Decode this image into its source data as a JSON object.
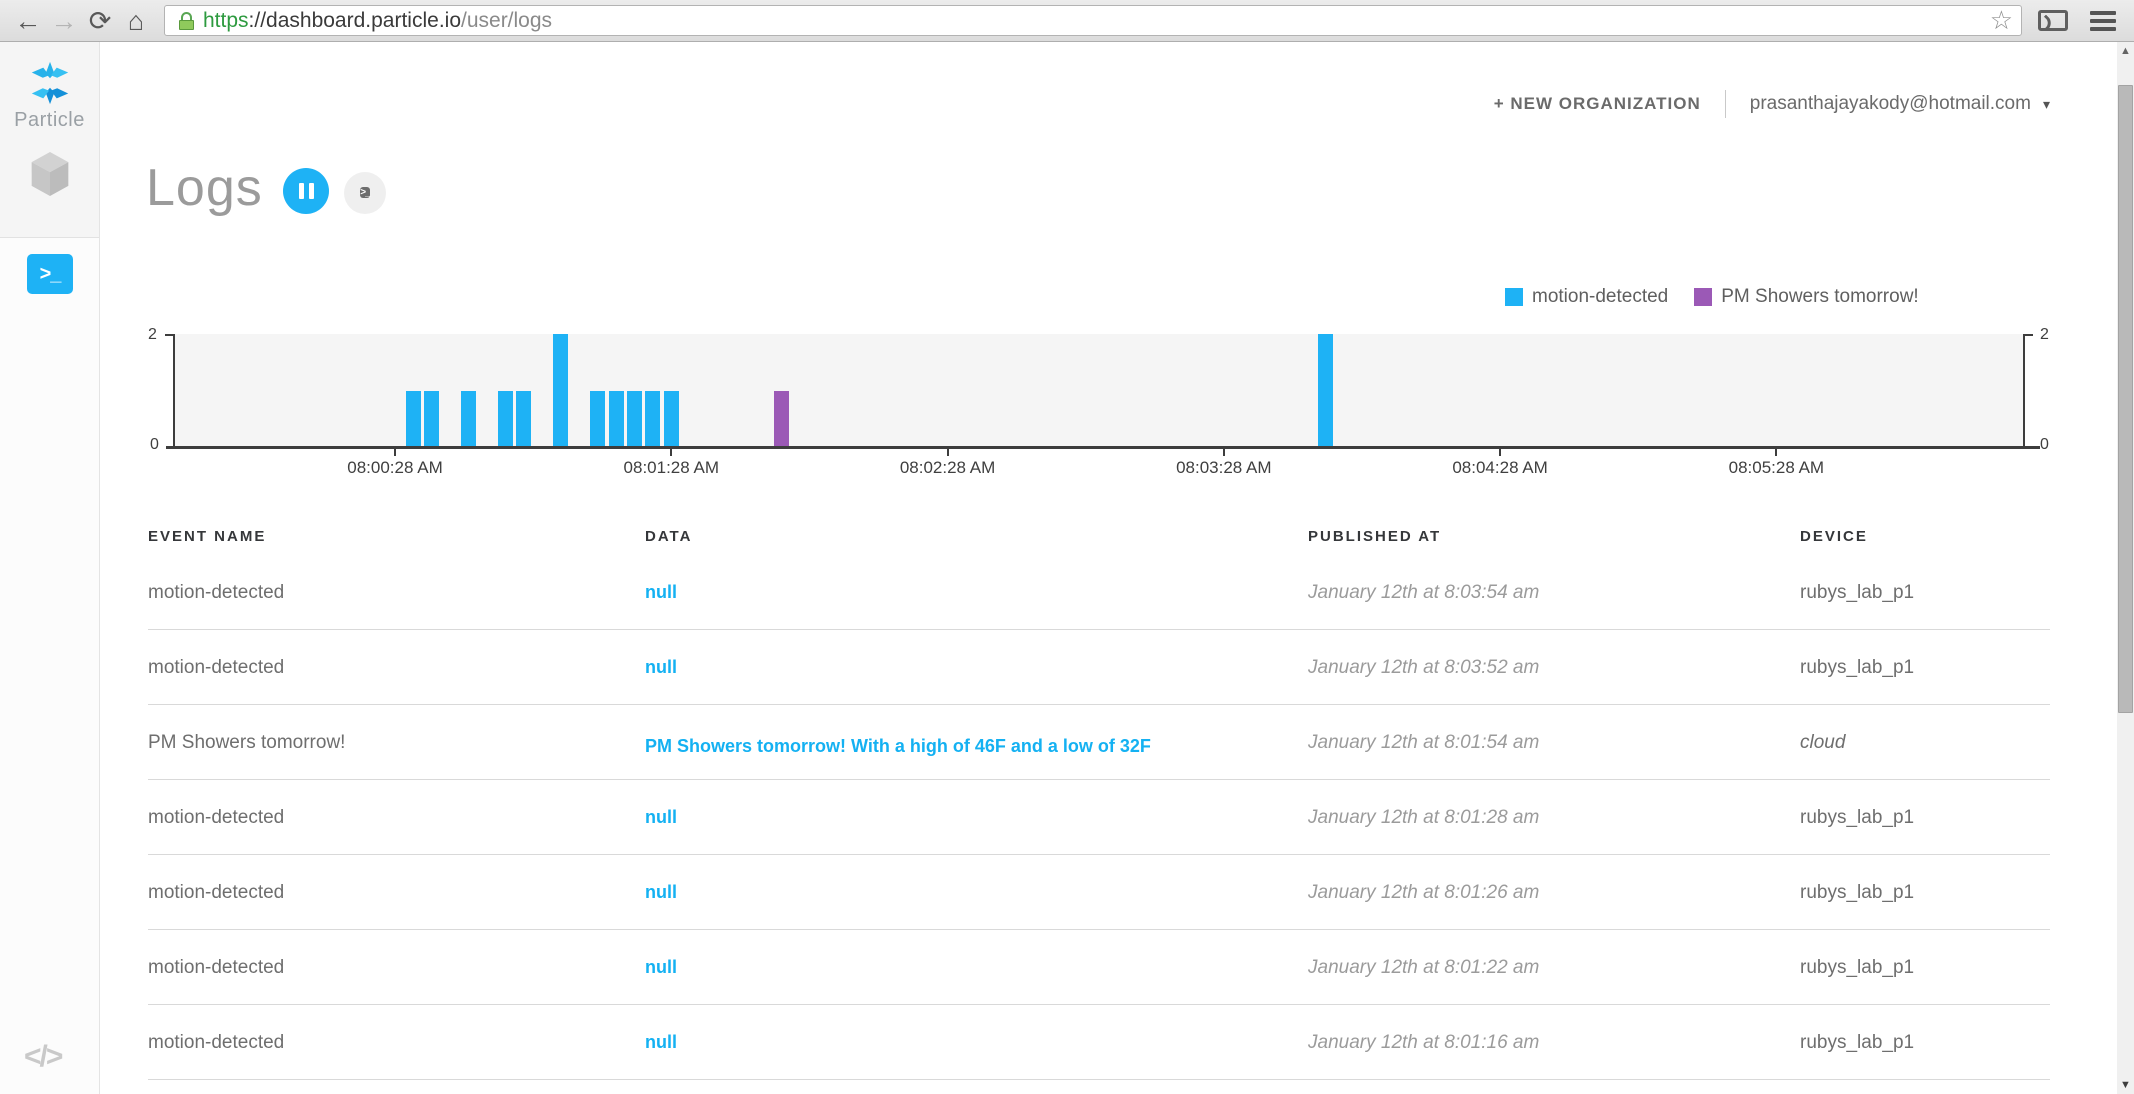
{
  "colors": {
    "accent_blue": "#1eb2f5",
    "accent_purple": "#9b59b6",
    "chart_background": "#f5f5f5"
  },
  "browser": {
    "url_scheme": "https",
    "url_host": "://dashboard.particle.io",
    "url_path": "/user/logs"
  },
  "sidebar": {
    "brand": "Particle"
  },
  "header": {
    "new_org_label": "+ NEW ORGANIZATION",
    "account_email": "prasanthajayakody@hotmail.com",
    "caret": "▾"
  },
  "page": {
    "title": "Logs",
    "terminal_glyph": ">_"
  },
  "chart_data": {
    "type": "bar",
    "title": "",
    "xlabel": "",
    "ylabel": "",
    "x_axis": {
      "start": "07:59:40",
      "end": "08:06:22",
      "ticks": [
        {
          "label": "08:00:28 AM",
          "time": "08:00:28"
        },
        {
          "label": "08:01:28 AM",
          "time": "08:01:28"
        },
        {
          "label": "08:02:28 AM",
          "time": "08:02:28"
        },
        {
          "label": "08:03:28 AM",
          "time": "08:03:28"
        },
        {
          "label": "08:04:28 AM",
          "time": "08:04:28"
        },
        {
          "label": "08:05:28 AM",
          "time": "08:05:28"
        }
      ]
    },
    "y_axis": {
      "min": 0,
      "max": 2,
      "tick_labels": [
        "0",
        "2"
      ],
      "shown_both_sides": true
    },
    "grid": false,
    "legend_position": "top-right",
    "series": [
      {
        "name": "motion-detected",
        "color": "#1eb2f5",
        "points": [
          {
            "time": "08:00:32",
            "count": 1
          },
          {
            "time": "08:00:36",
            "count": 1
          },
          {
            "time": "08:00:44",
            "count": 1
          },
          {
            "time": "08:00:52",
            "count": 1
          },
          {
            "time": "08:00:56",
            "count": 1
          },
          {
            "time": "08:01:04",
            "count": 2
          },
          {
            "time": "08:01:12",
            "count": 1
          },
          {
            "time": "08:01:16",
            "count": 1
          },
          {
            "time": "08:01:20",
            "count": 1
          },
          {
            "time": "08:01:24",
            "count": 1
          },
          {
            "time": "08:01:28",
            "count": 1
          },
          {
            "time": "08:03:50",
            "count": 2
          }
        ]
      },
      {
        "name": "PM Showers tomorrow!",
        "color": "#9b59b6",
        "points": [
          {
            "time": "08:01:52",
            "count": 1
          }
        ]
      }
    ]
  },
  "table": {
    "columns": [
      "EVENT NAME",
      "DATA",
      "PUBLISHED AT",
      "DEVICE"
    ],
    "rows": [
      {
        "event": "motion-detected",
        "data": "null",
        "published": "January 12th at 8:03:54 am",
        "device": "rubys_lab_p1",
        "device_italic": false,
        "multiline": false
      },
      {
        "event": "motion-detected",
        "data": "null",
        "published": "January 12th at 8:03:52 am",
        "device": "rubys_lab_p1",
        "device_italic": false,
        "multiline": false
      },
      {
        "event": "PM Showers tomorrow!",
        "data": "PM Showers tomorrow! With a high of 46F and a low of 32F",
        "published": "January 12th at 8:01:54 am",
        "device": "cloud",
        "device_italic": true,
        "multiline": true
      },
      {
        "event": "motion-detected",
        "data": "null",
        "published": "January 12th at 8:01:28 am",
        "device": "rubys_lab_p1",
        "device_italic": false,
        "multiline": false
      },
      {
        "event": "motion-detected",
        "data": "null",
        "published": "January 12th at 8:01:26 am",
        "device": "rubys_lab_p1",
        "device_italic": false,
        "multiline": false
      },
      {
        "event": "motion-detected",
        "data": "null",
        "published": "January 12th at 8:01:22 am",
        "device": "rubys_lab_p1",
        "device_italic": false,
        "multiline": false
      },
      {
        "event": "motion-detected",
        "data": "null",
        "published": "January 12th at 8:01:16 am",
        "device": "rubys_lab_p1",
        "device_italic": false,
        "multiline": false
      }
    ]
  }
}
